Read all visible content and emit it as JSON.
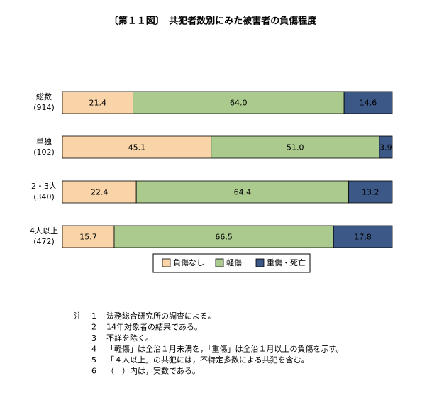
{
  "chart_data": {
    "type": "stacked-bar-horizontal",
    "title": "〔第１１図〕　共犯者数別にみた被害者の負傷程度",
    "categories": [
      "総数",
      "単独",
      "2・3人",
      "4人以上"
    ],
    "category_counts": [
      "(914)",
      "(102)",
      "(340)",
      "(472)"
    ],
    "xlim": [
      0,
      100
    ],
    "legend": "bottom",
    "series": [
      {
        "name": "負傷なし",
        "color": "#f9d4a8",
        "label_color": "#000000",
        "values": [
          21.4,
          45.1,
          22.4,
          15.7
        ],
        "value_labels": [
          "21.4",
          "45.1",
          "22.4",
          "15.7"
        ]
      },
      {
        "name": "軽傷",
        "color": "#abca8e",
        "label_color": "#000000",
        "values": [
          64.0,
          51.0,
          64.4,
          66.5
        ],
        "value_labels": [
          "64.0",
          "51.0",
          "64.4",
          "66.5"
        ]
      },
      {
        "name": "重傷・死亡",
        "color": "#3c5886",
        "label_color": "#ffffff",
        "values": [
          14.6,
          3.9,
          13.2,
          17.8
        ],
        "value_labels": [
          "14.6",
          "3.9",
          "13.2",
          "17.8"
        ]
      }
    ]
  },
  "notes": {
    "label": "注",
    "items": [
      {
        "number": "1",
        "text": "法務総合研究所の調査による。"
      },
      {
        "number": "2",
        "text": "14年対象者の結果である。"
      },
      {
        "number": "3",
        "text": "不詳を除く。"
      },
      {
        "number": "4",
        "text": "「軽傷」は全治１月未満を，「重傷」は全治１月以上の負傷を示す。"
      },
      {
        "number": "5",
        "text": "「４人以上」の共犯には，不特定多数による共犯を含む。"
      },
      {
        "number": "6",
        "text": "（　）内は，実数である。"
      }
    ]
  }
}
